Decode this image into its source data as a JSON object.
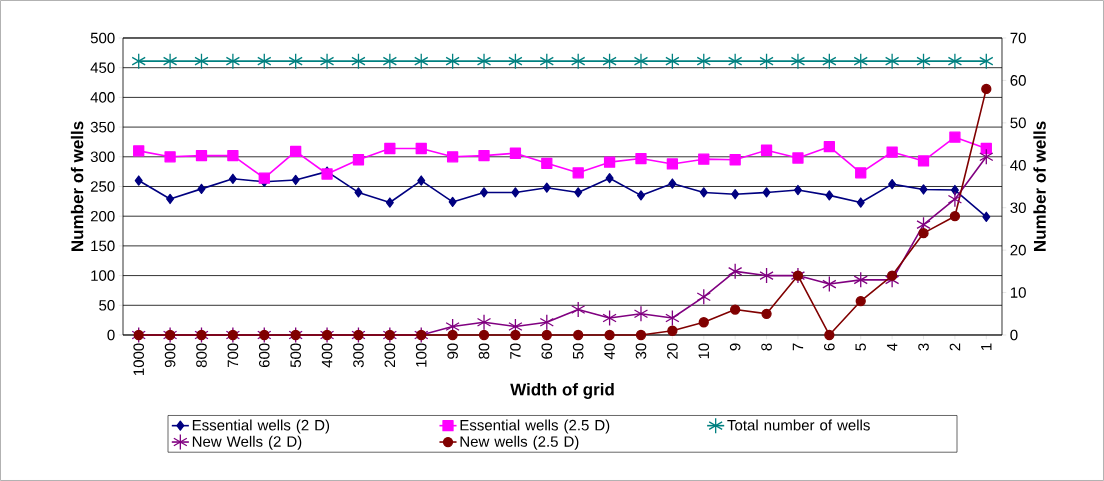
{
  "chart_data": {
    "type": "line",
    "xlabel": "Width of grid",
    "ylabel": "Number of wells",
    "y2label": "Number of wells",
    "categories": [
      "1000",
      "900",
      "800",
      "700",
      "600",
      "500",
      "400",
      "300",
      "200",
      "100",
      "90",
      "80",
      "70",
      "60",
      "50",
      "40",
      "30",
      "20",
      "10",
      "9",
      "8",
      "7",
      "6",
      "5",
      "4",
      "3",
      "2",
      "1"
    ],
    "series": [
      {
        "name": "Essential wells (2 D)",
        "color": "#000080",
        "marker": "diamond",
        "values": [
          260,
          229,
          246,
          263,
          258,
          261,
          275,
          240,
          223,
          260,
          224,
          240,
          240,
          248,
          240,
          264,
          235,
          255,
          240,
          237,
          240,
          244,
          235,
          223,
          254,
          245,
          244,
          199
        ]
      },
      {
        "name": "Essential wells (2.5 D)",
        "color": "#ff00ff",
        "marker": "square",
        "values": [
          310,
          300,
          302,
          302,
          264,
          309,
          271,
          295,
          314,
          314,
          300,
          302,
          306,
          289,
          273,
          291,
          297,
          288,
          296,
          295,
          311,
          298,
          317,
          273,
          308,
          293,
          333,
          314
        ]
      },
      {
        "name": "Total number of wells",
        "color": "#008080",
        "marker": "cross",
        "values": [
          461,
          461,
          461,
          461,
          461,
          461,
          461,
          461,
          461,
          461,
          461,
          461,
          461,
          461,
          461,
          461,
          461,
          461,
          461,
          461,
          461,
          461,
          461,
          461,
          461,
          461,
          461,
          461
        ]
      },
      {
        "name": "New Wells (2 D)",
        "color": "#800080",
        "marker": "cross",
        "axis": "y2",
        "values": [
          0,
          0,
          0,
          0,
          0,
          0,
          0,
          0,
          0,
          0,
          2,
          3,
          2,
          3,
          6,
          4,
          5,
          4,
          9,
          15,
          14,
          14,
          12,
          13,
          13,
          26,
          32,
          42
        ]
      },
      {
        "name": "New wells (2.5 D)",
        "color": "#800000",
        "marker": "circle",
        "axis": "y2",
        "values": [
          0,
          0,
          0,
          0,
          0,
          0,
          0,
          0,
          0,
          0,
          0,
          0,
          0,
          0,
          0,
          0,
          0,
          1,
          3,
          6,
          5,
          14,
          0,
          8,
          14,
          24,
          28,
          58
        ]
      }
    ],
    "ylim": [
      0,
      500
    ],
    "yticks": [
      0,
      50,
      100,
      150,
      200,
      250,
      300,
      350,
      400,
      450,
      500
    ],
    "y2lim": [
      0,
      70
    ],
    "y2ticks": [
      0,
      10,
      20,
      30,
      40,
      50,
      60,
      70
    ],
    "grid": "y",
    "legend": "bottom"
  }
}
